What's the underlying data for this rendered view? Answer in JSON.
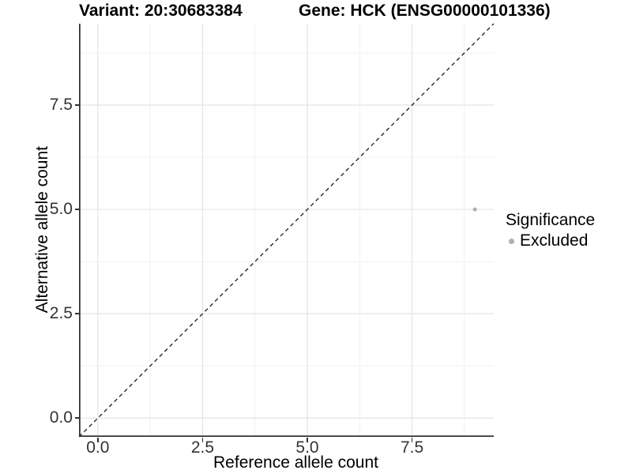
{
  "header": {
    "variant_title": "Variant: 20:30683384",
    "gene_title": "Gene: HCK (ENSG00000101336)"
  },
  "legend": {
    "title": "Significance",
    "items": [
      {
        "label": "Excluded",
        "color": "#b0b0b0"
      }
    ]
  },
  "chart_data": {
    "type": "scatter",
    "title": "Variant: 20:30683384 / Gene: HCK (ENSG00000101336)",
    "xlabel": "Reference allele count",
    "ylabel": "Alternative allele count",
    "xlim": [
      -0.45,
      9.45
    ],
    "ylim": [
      -0.45,
      9.45
    ],
    "x_ticks": [
      0,
      2.5,
      5,
      7.5
    ],
    "x_tick_labels": [
      "0.0",
      "2.5",
      "5.0",
      "7.5"
    ],
    "y_ticks": [
      0,
      2.5,
      5,
      7.5
    ],
    "y_tick_labels": [
      "0.0",
      "2.5",
      "5.0",
      "7.5"
    ],
    "x_minor_ticks": [
      1.25,
      3.75,
      6.25,
      8.75
    ],
    "y_minor_ticks": [
      1.25,
      3.75,
      6.25,
      8.75
    ],
    "series": [
      {
        "name": "Excluded",
        "color": "#b0b0b0",
        "points": [
          [
            9,
            5
          ]
        ]
      }
    ],
    "abline": {
      "slope": 1,
      "intercept": 0,
      "linetype": "dashed",
      "color": "#1a1a1a"
    },
    "grid": {
      "major": true,
      "minor": true
    },
    "legend_position": "right",
    "colors": {
      "grid_major": "#e4e4e4",
      "grid_minor": "#f1f1f1",
      "axis_line": "#333333",
      "tick_text": "#333333",
      "background": "#ffffff"
    }
  }
}
